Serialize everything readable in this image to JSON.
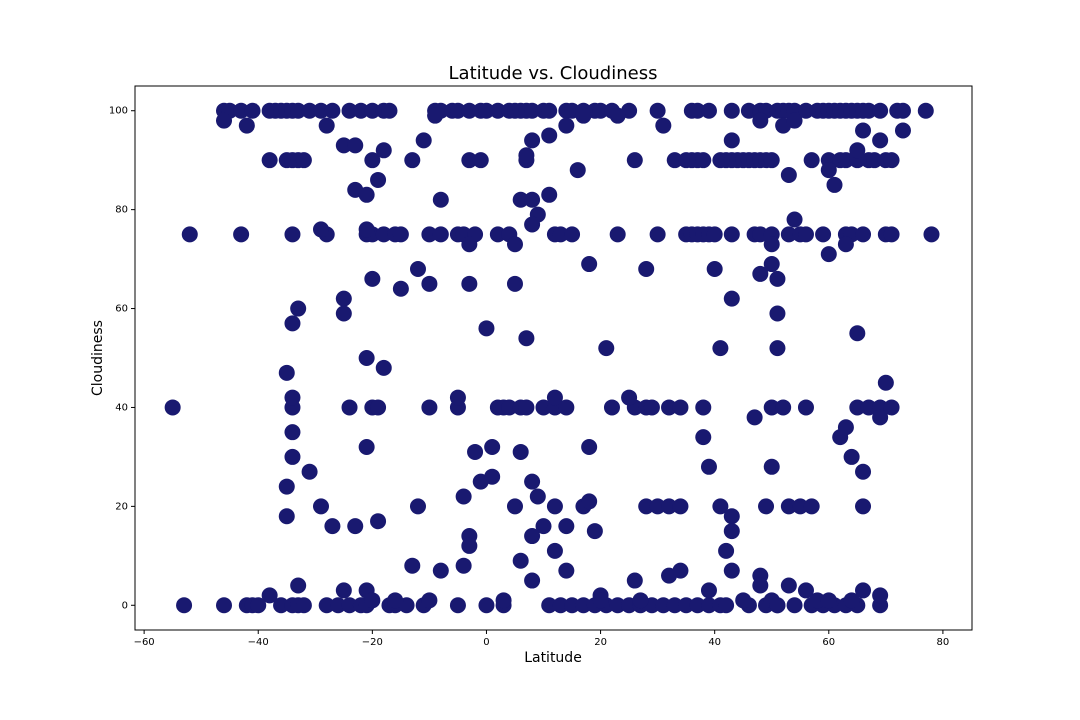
{
  "chart_data": {
    "type": "scatter",
    "title": "Latitude vs. Cloudiness",
    "x_label": "Latitude",
    "y_label": "Cloudiness",
    "color": "#191970",
    "xlim": [
      -61.6,
      85.1
    ],
    "ylim": [
      -5,
      105
    ],
    "xticks": [
      {
        "value": -60,
        "label": "−60"
      },
      {
        "value": -40,
        "label": "−40"
      },
      {
        "value": -20,
        "label": "−20"
      },
      0,
      20,
      40,
      60,
      80
    ],
    "yticks": [
      0,
      20,
      40,
      60,
      80,
      100
    ],
    "x": [
      -46,
      -45,
      -43,
      -41,
      -38,
      -37,
      -36,
      -35,
      -34,
      -33,
      -31,
      -29,
      -27,
      -24,
      -22,
      -20,
      -18,
      -17,
      -9,
      -8,
      -6,
      -5,
      -3,
      -1,
      0,
      2,
      4,
      5,
      6,
      7,
      8,
      10,
      11,
      14,
      15,
      17,
      19,
      20,
      22,
      25,
      30,
      36,
      37,
      39,
      43,
      46,
      48,
      49,
      51,
      52,
      53,
      54,
      56,
      58,
      59,
      60,
      61,
      62,
      63,
      64,
      65,
      66,
      67,
      69,
      72,
      73,
      77,
      -38,
      -35,
      -34,
      -33,
      -32,
      -20,
      -13,
      -3,
      -1,
      7,
      26,
      33,
      35,
      36,
      37,
      38,
      41,
      42,
      43,
      44,
      45,
      46,
      47,
      48,
      49,
      50,
      57,
      60,
      62,
      63,
      65,
      67,
      68,
      70,
      71,
      -52,
      -43,
      -34,
      -28,
      -21,
      -20,
      -18,
      -16,
      -15,
      -10,
      -8,
      -5,
      -4,
      -2,
      2,
      4,
      12,
      13,
      15,
      23,
      30,
      35,
      36,
      37,
      38,
      39,
      40,
      43,
      47,
      48,
      50,
      53,
      55,
      56,
      59,
      63,
      64,
      66,
      70,
      71,
      78,
      -55,
      -34,
      -24,
      -20,
      -19,
      -10,
      -5,
      2,
      3,
      4,
      6,
      7,
      10,
      12,
      14,
      22,
      26,
      28,
      29,
      32,
      34,
      38,
      50,
      52,
      56,
      65,
      67,
      69,
      71,
      -53,
      -46,
      -42,
      -36,
      -34,
      -33,
      -32,
      -28,
      -26,
      -24,
      -22,
      -21,
      -17,
      -16,
      -14,
      -11,
      -5,
      0,
      3,
      11,
      13,
      15,
      17,
      19,
      21,
      23,
      25,
      27,
      29,
      31,
      33,
      35,
      37,
      39,
      41,
      42,
      46,
      49,
      51,
      54,
      57,
      59,
      61,
      63,
      65,
      69,
      -46,
      -42,
      -28,
      -25,
      -23,
      -18,
      -19,
      -23,
      -21,
      -8,
      -11,
      -9,
      11,
      8,
      14,
      17,
      23,
      31,
      43,
      48,
      52,
      54,
      53,
      61,
      60,
      65,
      66,
      69,
      73,
      6,
      8,
      9,
      11,
      16,
      7,
      -3,
      5,
      8,
      18,
      28,
      40,
      43,
      48,
      50,
      50,
      51,
      60,
      63,
      54,
      51,
      51,
      41,
      21,
      65,
      -20,
      -15,
      -12,
      -10,
      -3,
      5,
      -25,
      -25,
      -33,
      -34,
      -21,
      -18,
      -35,
      0,
      7,
      -29,
      -21,
      -34,
      -34,
      -34,
      -35,
      -35,
      -31,
      -29,
      -27,
      -23,
      -21,
      -19,
      -12,
      -13,
      -8,
      -4,
      -3,
      -3,
      -4,
      -2,
      -1,
      1,
      1,
      5,
      6,
      6,
      8,
      8,
      8,
      9,
      10,
      12,
      12,
      14,
      14,
      17,
      18,
      18,
      19,
      26,
      28,
      30,
      32,
      34,
      32,
      34,
      38,
      39,
      41,
      42,
      43,
      43,
      43,
      47,
      48,
      48,
      49,
      50,
      53,
      55,
      57,
      53,
      56,
      62,
      63,
      64,
      66,
      66,
      66,
      69,
      70,
      69,
      -38,
      -33,
      -25,
      -21,
      -5,
      25,
      12,
      -41,
      -40,
      -20,
      -16,
      -10,
      3,
      20,
      20,
      27,
      45,
      50,
      58,
      60,
      64,
      39,
      51
    ],
    "values": [
      100,
      100,
      100,
      100,
      100,
      100,
      100,
      100,
      100,
      100,
      100,
      100,
      100,
      100,
      100,
      100,
      100,
      100,
      100,
      100,
      100,
      100,
      100,
      100,
      100,
      100,
      100,
      100,
      100,
      100,
      100,
      100,
      100,
      100,
      100,
      100,
      100,
      100,
      100,
      100,
      100,
      100,
      100,
      100,
      100,
      100,
      100,
      100,
      100,
      100,
      100,
      100,
      100,
      100,
      100,
      100,
      100,
      100,
      100,
      100,
      100,
      100,
      100,
      100,
      100,
      100,
      100,
      90,
      90,
      90,
      90,
      90,
      90,
      90,
      90,
      90,
      90,
      90,
      90,
      90,
      90,
      90,
      90,
      90,
      90,
      90,
      90,
      90,
      90,
      90,
      90,
      90,
      90,
      90,
      90,
      90,
      90,
      90,
      90,
      90,
      90,
      90,
      75,
      75,
      75,
      75,
      75,
      75,
      75,
      75,
      75,
      75,
      75,
      75,
      75,
      75,
      75,
      75,
      75,
      75,
      75,
      75,
      75,
      75,
      75,
      75,
      75,
      75,
      75,
      75,
      75,
      75,
      75,
      75,
      75,
      75,
      75,
      75,
      75,
      75,
      75,
      75,
      75,
      40,
      40,
      40,
      40,
      40,
      40,
      40,
      40,
      40,
      40,
      40,
      40,
      40,
      40,
      40,
      40,
      40,
      40,
      40,
      40,
      40,
      40,
      40,
      40,
      40,
      40,
      40,
      40,
      40,
      0,
      0,
      0,
      0,
      0,
      0,
      0,
      0,
      0,
      0,
      0,
      0,
      0,
      0,
      0,
      0,
      0,
      0,
      0,
      0,
      0,
      0,
      0,
      0,
      0,
      0,
      0,
      0,
      0,
      0,
      0,
      0,
      0,
      0,
      0,
      0,
      0,
      0,
      0,
      0,
      0,
      0,
      0,
      0,
      0,
      0,
      98,
      97,
      97,
      93,
      93,
      92,
      86,
      84,
      83,
      82,
      94,
      99,
      95,
      94,
      97,
      99,
      99,
      97,
      94,
      98,
      97,
      98,
      87,
      85,
      88,
      92,
      96,
      94,
      96,
      82,
      82,
      79,
      83,
      88,
      91,
      73,
      73,
      77,
      69,
      68,
      68,
      62,
      67,
      69,
      73,
      66,
      71,
      73,
      78,
      59,
      52,
      52,
      52,
      55,
      66,
      64,
      68,
      65,
      65,
      65,
      62,
      59,
      60,
      57,
      50,
      48,
      47,
      56,
      54,
      76,
      76,
      42,
      35,
      30,
      24,
      18,
      27,
      20,
      16,
      16,
      32,
      17,
      20,
      8,
      7,
      22,
      14,
      12,
      8,
      31,
      25,
      26,
      32,
      20,
      9,
      31,
      25,
      14,
      5,
      22,
      16,
      11,
      20,
      16,
      7,
      20,
      21,
      32,
      15,
      5,
      20,
      20,
      20,
      20,
      6,
      7,
      34,
      28,
      20,
      11,
      18,
      15,
      7,
      38,
      6,
      4,
      20,
      28,
      20,
      20,
      20,
      4,
      3,
      34,
      36,
      30,
      27,
      20,
      3,
      38,
      45,
      2,
      2,
      4,
      3,
      3,
      42,
      42,
      42,
      0,
      0,
      1,
      1,
      1,
      1,
      2,
      1,
      1,
      1,
      1,
      1,
      1,
      1,
      3,
      0
    ]
  }
}
